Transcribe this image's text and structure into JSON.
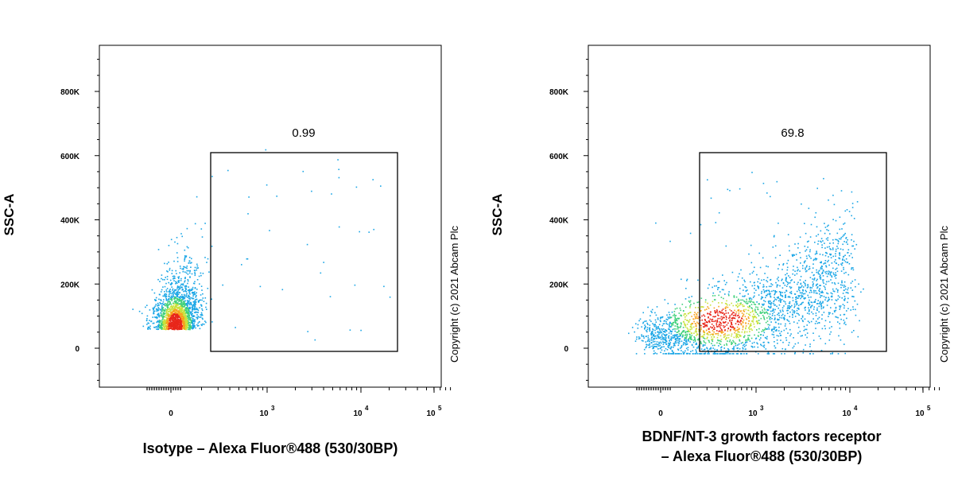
{
  "copyright": "Copyright (c) 2021 Abcam Plc",
  "chart_data": [
    {
      "type": "scatter",
      "title": "",
      "ylabel": "SSC-A",
      "xlabel": "Isotype – Alexa Fluor®488 (530/30BP)",
      "xlabel_lines": [
        "Isotype – Alexa Fluor®488 (530/30BP)"
      ],
      "x_scale": "biexponential",
      "y_ticks": [
        0,
        200000,
        400000,
        600000,
        800000
      ],
      "y_tick_labels": [
        "0",
        "200K",
        "400K",
        "600K",
        "800K"
      ],
      "x_tick_labels": [
        {
          "base": "0",
          "exp": ""
        },
        {
          "base": "10",
          "exp": "3"
        },
        {
          "base": "10",
          "exp": "4"
        },
        {
          "base": "10",
          "exp": "5"
        }
      ],
      "ylim": [
        -120000,
        950000
      ],
      "gate": {
        "label": "0.99",
        "percent": 0.99,
        "y_range": [
          -10000,
          610000
        ]
      },
      "population_fraction_in_gate": 0.0099
    },
    {
      "type": "scatter",
      "title": "",
      "ylabel": "SSC-A",
      "xlabel": "BDNF/NT-3 growth factors receptor – Alexa Fluor®488 (530/30BP)",
      "xlabel_lines": [
        "BDNF/NT-3 growth factors receptor",
        "– Alexa Fluor®488 (530/30BP)"
      ],
      "x_scale": "biexponential",
      "y_ticks": [
        0,
        200000,
        400000,
        600000,
        800000
      ],
      "y_tick_labels": [
        "0",
        "200K",
        "400K",
        "600K",
        "800K"
      ],
      "x_tick_labels": [
        {
          "base": "0",
          "exp": ""
        },
        {
          "base": "10",
          "exp": "3"
        },
        {
          "base": "10",
          "exp": "4"
        },
        {
          "base": "10",
          "exp": "5"
        }
      ],
      "ylim": [
        -120000,
        950000
      ],
      "gate": {
        "label": "69.8",
        "percent": 69.8,
        "y_range": [
          -10000,
          610000
        ]
      },
      "population_fraction_in_gate": 0.698
    }
  ]
}
